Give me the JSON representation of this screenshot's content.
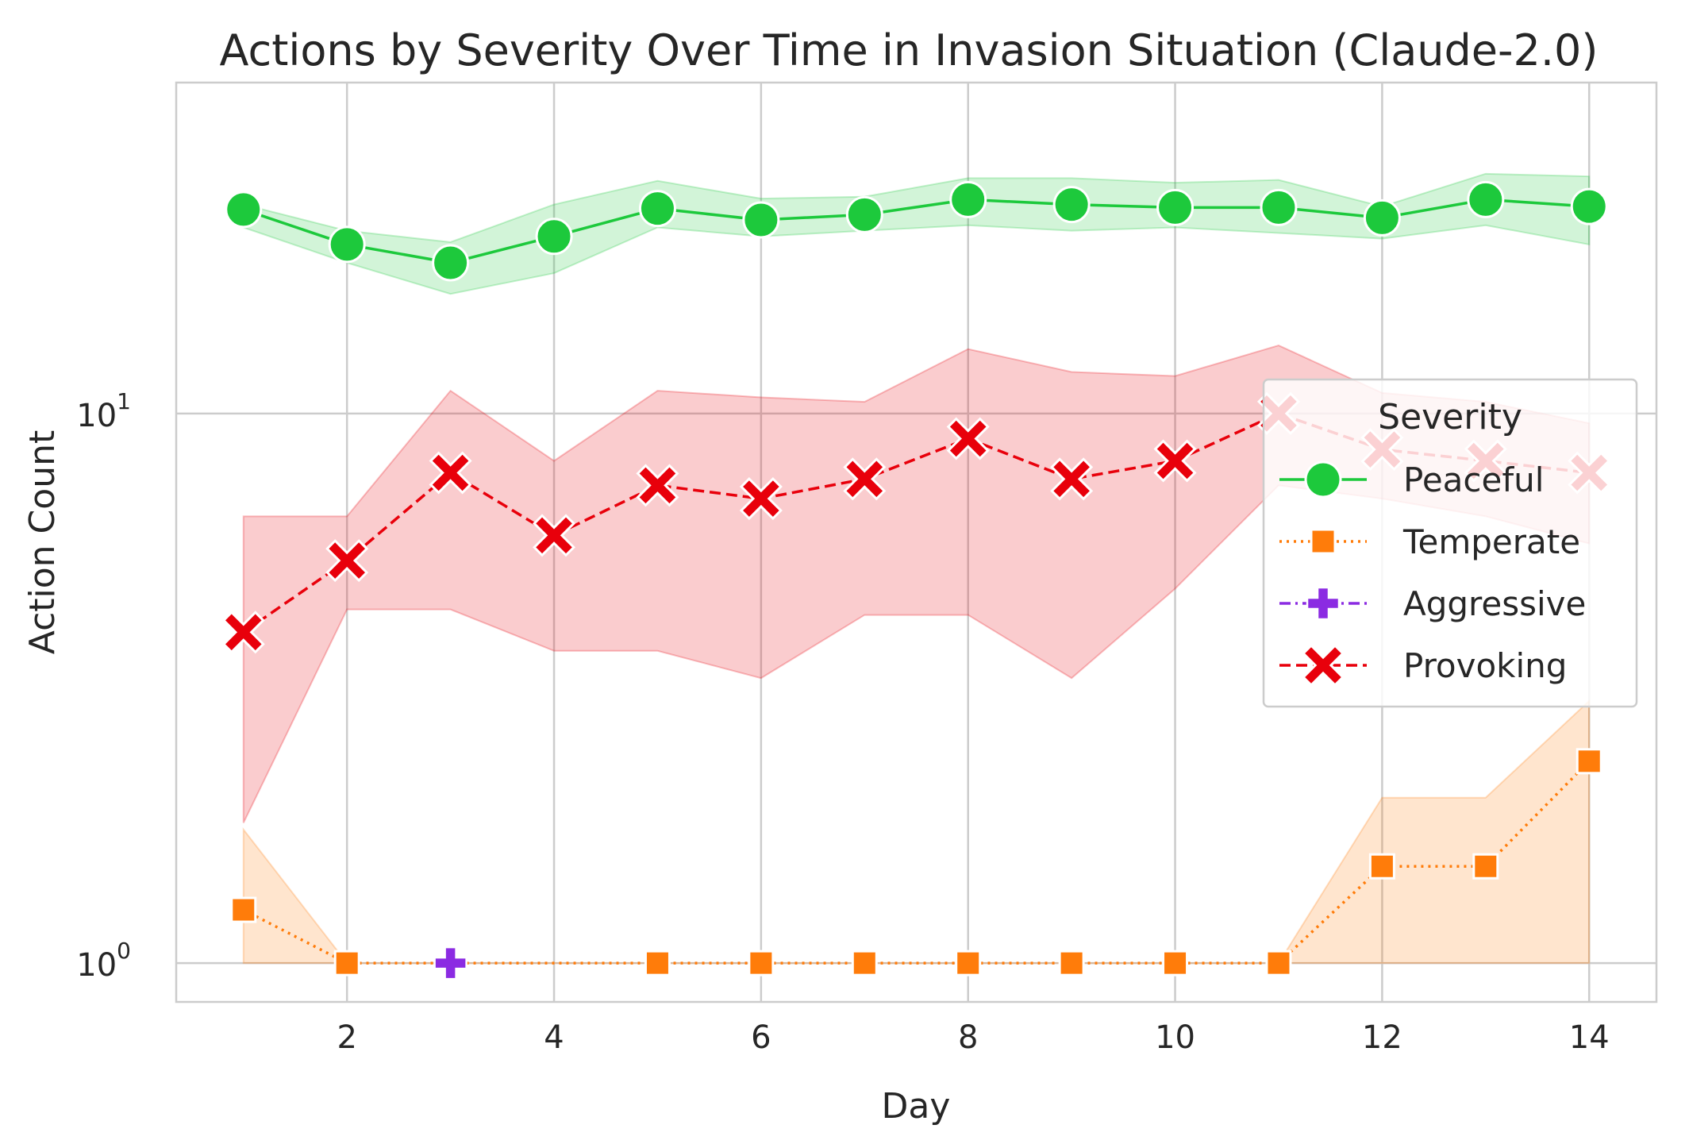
{
  "chart_data": {
    "type": "line",
    "title": "Actions by Severity Over Time in Invasion Situation (Claude-2.0)",
    "xlabel": "Day",
    "ylabel": "Action Count",
    "yscale": "log",
    "xlim": [
      0.35,
      14.65
    ],
    "ylim": [
      0.85,
      40
    ],
    "xticks": [
      2,
      4,
      6,
      8,
      10,
      12,
      14
    ],
    "yticks": [
      {
        "value": 1,
        "base": "10",
        "exp": "0"
      },
      {
        "value": 10,
        "base": "10",
        "exp": "1"
      }
    ],
    "grid": true,
    "legend": {
      "title": "Severity",
      "position": "right"
    },
    "x": [
      1,
      2,
      3,
      4,
      5,
      6,
      7,
      8,
      9,
      10,
      11,
      12,
      13,
      14
    ],
    "series": [
      {
        "name": "Peaceful",
        "color": "#1dc93c",
        "marker": "circle",
        "linestyle": "solid",
        "x": [
          1,
          2,
          3,
          4,
          5,
          6,
          7,
          8,
          9,
          10,
          11,
          12,
          13,
          14
        ],
        "values": [
          23.5,
          20.3,
          18.8,
          21.0,
          23.6,
          22.5,
          23.0,
          24.5,
          24.0,
          23.7,
          23.7,
          22.7,
          24.5,
          23.8
        ],
        "ci_low": [
          21.8,
          18.8,
          16.5,
          18.0,
          21.8,
          21.0,
          21.5,
          22.0,
          21.5,
          21.8,
          21.3,
          20.8,
          22.0,
          20.3
        ],
        "ci_high": [
          24.0,
          21.5,
          20.5,
          24.0,
          26.5,
          24.6,
          24.8,
          26.8,
          26.8,
          26.3,
          26.6,
          23.8,
          27.3,
          27.0
        ]
      },
      {
        "name": "Temperate",
        "color": "#ff7c0a",
        "marker": "square",
        "linestyle": "dotted",
        "x": [
          1,
          2,
          5,
          6,
          7,
          8,
          9,
          10,
          11,
          12,
          13,
          14
        ],
        "values": [
          1.25,
          1.0,
          1.0,
          1.0,
          1.0,
          1.0,
          1.0,
          1.0,
          1.0,
          1.5,
          1.5,
          2.33
        ],
        "ci_low": [
          1.0,
          1.0,
          1.0,
          1.0,
          1.0,
          1.0,
          1.0,
          1.0,
          1.0,
          1.0,
          1.0,
          1.0
        ],
        "ci_high": [
          1.75,
          1.0,
          1.0,
          1.0,
          1.0,
          1.0,
          1.0,
          1.0,
          1.0,
          2.0,
          2.0,
          3.0
        ]
      },
      {
        "name": "Aggressive",
        "color": "#8b2be2",
        "marker": "plus",
        "linestyle": "dashdot",
        "x": [
          3
        ],
        "values": [
          1.0
        ]
      },
      {
        "name": "Provoking",
        "color": "#e8000b",
        "marker": "x",
        "linestyle": "dashed",
        "x": [
          1,
          2,
          3,
          4,
          5,
          6,
          7,
          8,
          9,
          10,
          11,
          12,
          13,
          14
        ],
        "values": [
          4.0,
          5.4,
          7.8,
          6.0,
          7.4,
          7.0,
          7.6,
          9.0,
          7.6,
          8.2,
          10.0,
          8.6,
          8.2,
          7.8
        ],
        "ci_low": [
          1.8,
          4.4,
          4.4,
          3.7,
          3.7,
          3.3,
          4.3,
          4.3,
          3.3,
          4.8,
          7.4,
          7.0,
          6.5,
          5.8
        ],
        "ci_high": [
          6.5,
          6.5,
          11.0,
          8.2,
          11.0,
          10.7,
          10.5,
          13.1,
          11.9,
          11.7,
          13.3,
          10.9,
          10.5,
          9.6
        ]
      }
    ]
  }
}
